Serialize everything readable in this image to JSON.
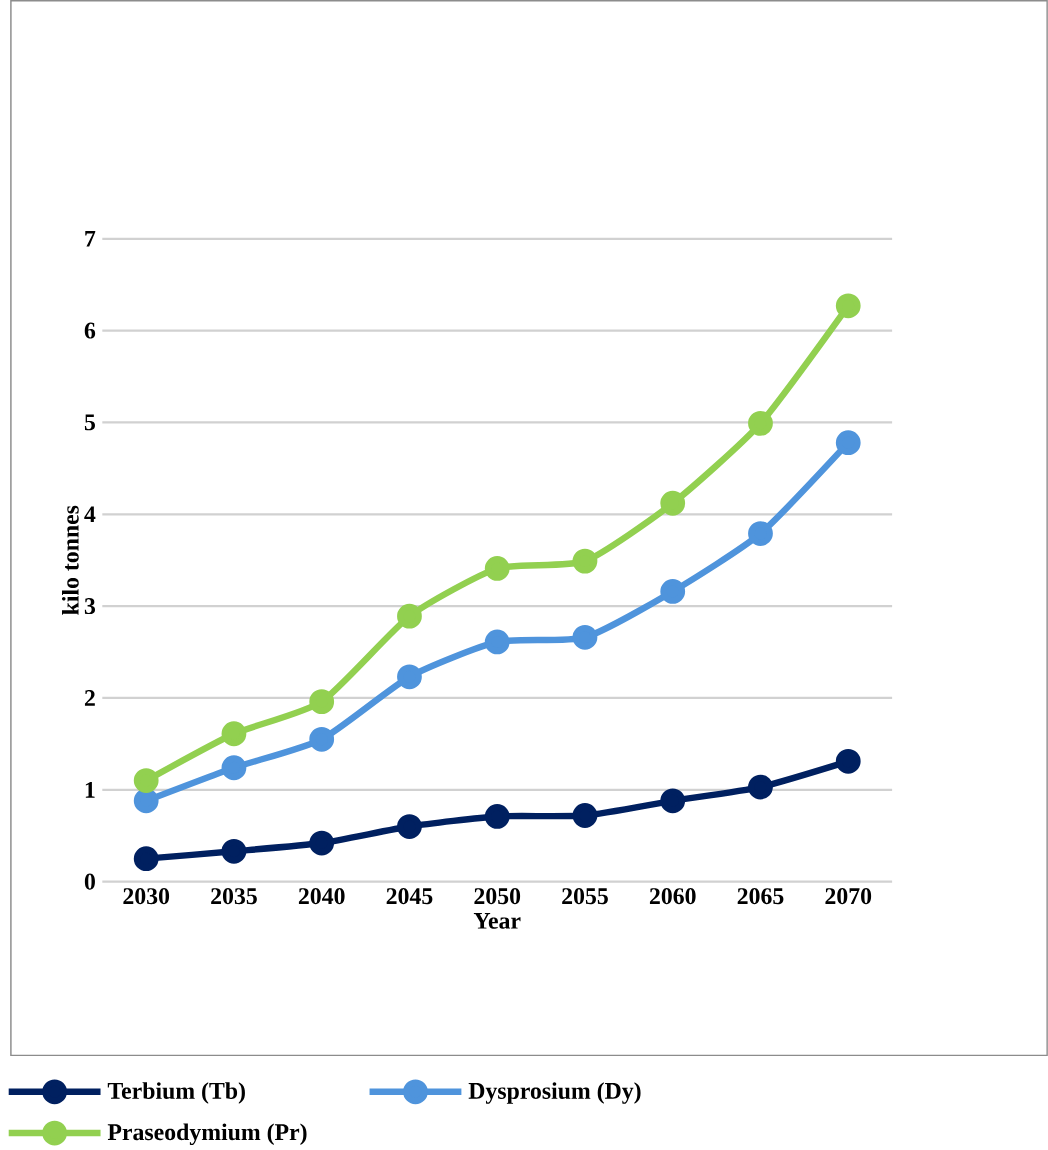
{
  "chart_data": {
    "type": "line",
    "xlabel": "Year",
    "ylabel": "kilo tonnes",
    "categories": [
      "2030",
      "2035",
      "2040",
      "2045",
      "2050",
      "2055",
      "2060",
      "2065",
      "2070"
    ],
    "series": [
      {
        "name": "Terbium (Tb)",
        "color": "#002060",
        "values": [
          0.25,
          0.33,
          0.42,
          0.6,
          0.71,
          0.72,
          0.88,
          1.03,
          1.31
        ]
      },
      {
        "name": "Dysprosium (Dy)",
        "color": "#4f94dc",
        "values": [
          0.88,
          1.24,
          1.55,
          2.23,
          2.61,
          2.66,
          3.16,
          3.79,
          4.78
        ]
      },
      {
        "name": "Praseodymium (Pr)",
        "color": "#92d050",
        "values": [
          1.1,
          1.61,
          1.96,
          2.89,
          3.41,
          3.49,
          4.12,
          4.99,
          6.27
        ]
      }
    ],
    "ylim": [
      0,
      7
    ],
    "yticks": [
      0,
      1,
      2,
      3,
      4,
      5,
      6,
      7
    ],
    "grid": "y",
    "legend": "bottom",
    "marker": "circle",
    "line_style": "solid"
  }
}
